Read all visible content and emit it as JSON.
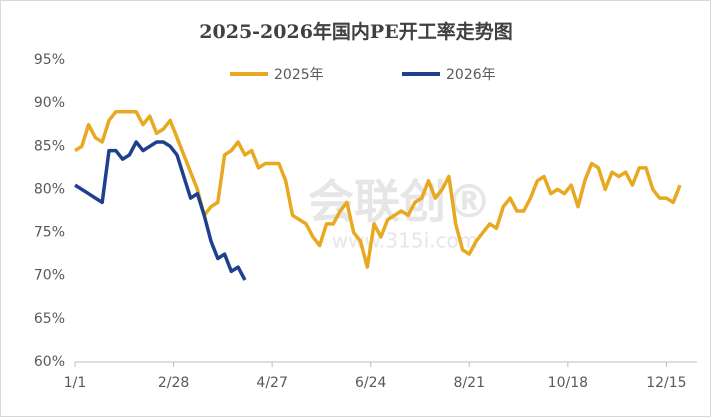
{
  "chart_data": {
    "type": "line",
    "title": "2025-2026年国内PE开工率走势图",
    "watermark": "会联创®",
    "watermark_url": "www.315i.com",
    "x": [
      0,
      4,
      8,
      12,
      16,
      20,
      24,
      28,
      32,
      36,
      40,
      44,
      48,
      52,
      56,
      60,
      64,
      68,
      72,
      76,
      80,
      84,
      88,
      92,
      96,
      100,
      104,
      108,
      112,
      116,
      120,
      124,
      128,
      132,
      136,
      140,
      144,
      148,
      152,
      156,
      160,
      164,
      168,
      172,
      176,
      180,
      184,
      188,
      192,
      196,
      200,
      204,
      208,
      212,
      216,
      220,
      224,
      228,
      232,
      236,
      240,
      244,
      248,
      252,
      256,
      260,
      264,
      268,
      272,
      276,
      280,
      284,
      288,
      292,
      296,
      300,
      304,
      308,
      312,
      316,
      320,
      324,
      328,
      332,
      336,
      340,
      344,
      348,
      352,
      356
    ],
    "series": [
      {
        "name": "2025年",
        "color": "#E8A820",
        "values": [
          84.5,
          85,
          87.5,
          86,
          85.5,
          88,
          89,
          89,
          89,
          89,
          87.5,
          88.5,
          86.5,
          87,
          88,
          86,
          84,
          82,
          80,
          77,
          78,
          78.5,
          84,
          84.5,
          85.5,
          84,
          84.5,
          82.5,
          83,
          83,
          83,
          81,
          77,
          76.5,
          76,
          74.5,
          73.5,
          76,
          76,
          77.5,
          78.5,
          75,
          74,
          71,
          76,
          74.5,
          76.5,
          77,
          77.5,
          77,
          78.5,
          79,
          81,
          79,
          80,
          81.5,
          76,
          73,
          72.5,
          74,
          75,
          76,
          75.5,
          78,
          79,
          77.5,
          77.5,
          79,
          81,
          81.5,
          79.5,
          80,
          79.5,
          80.5,
          78,
          81,
          83,
          82.5,
          80,
          82,
          81.5,
          82,
          80.5,
          82.5,
          82.5,
          80,
          79,
          79,
          78.5,
          80.5
        ]
      },
      {
        "name": "2026年",
        "color": "#1F3F8F",
        "values": [
          80.5,
          80,
          79.5,
          79,
          78.5,
          84.5,
          84.5,
          83.5,
          84,
          85.5,
          84.5,
          85,
          85.5,
          85.5,
          85,
          84,
          81.5,
          79,
          79.5,
          77,
          74,
          72,
          72.5,
          70.5,
          71,
          69.5,
          null,
          null,
          null,
          null,
          null,
          null,
          null,
          null,
          null,
          null,
          null,
          null,
          null,
          null,
          null,
          null,
          null,
          null,
          null,
          null,
          null,
          null,
          null,
          null,
          null,
          null,
          null,
          null,
          null,
          null,
          null,
          null,
          null,
          null,
          null,
          null,
          null,
          null,
          null,
          null,
          null,
          null,
          null,
          null,
          null,
          null,
          null,
          null,
          null,
          null,
          null,
          null,
          null,
          null,
          null,
          null,
          null,
          null,
          null,
          null,
          null,
          null,
          null,
          null
        ]
      }
    ],
    "xlim": [
      0,
      366
    ],
    "xticks": [
      {
        "value": 0,
        "label": "1/1"
      },
      {
        "value": 58,
        "label": "2/28"
      },
      {
        "value": 116,
        "label": "4/27"
      },
      {
        "value": 174,
        "label": "6/24"
      },
      {
        "value": 232,
        "label": "8/21"
      },
      {
        "value": 290,
        "label": "10/18"
      },
      {
        "value": 348,
        "label": "12/15"
      }
    ],
    "ylim": [
      60,
      95
    ],
    "yticks": [
      {
        "value": 60,
        "label": "60%"
      },
      {
        "value": 65,
        "label": "65%"
      },
      {
        "value": 70,
        "label": "70%"
      },
      {
        "value": 75,
        "label": "75%"
      },
      {
        "value": 80,
        "label": "80%"
      },
      {
        "value": 85,
        "label": "85%"
      },
      {
        "value": 90,
        "label": "90%"
      },
      {
        "value": 95,
        "label": "95%"
      }
    ],
    "grid": false,
    "legend": "top"
  }
}
